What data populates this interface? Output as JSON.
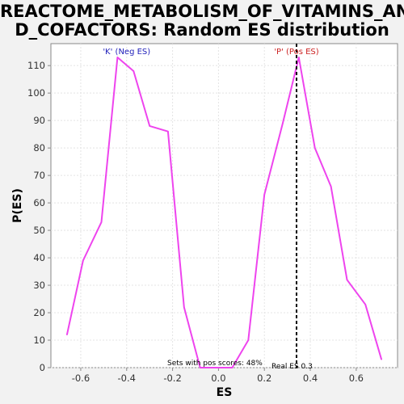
{
  "title_line1": "REACTOME_METABOLISM_OF_VITAMINS_AN",
  "title_line2": "D_COFACTORS: Random ES distribution",
  "chart_data": {
    "type": "line",
    "title": "REACTOME_METABOLISM_OF_VITAMINS_AND_COFACTORS: Random ES distribution",
    "xlabel": "ES",
    "ylabel": "P(ES)",
    "xlim": [
      -0.73,
      0.78
    ],
    "ylim": [
      0,
      118
    ],
    "xticks": [
      -0.6,
      -0.4,
      -0.2,
      0.0,
      0.2,
      0.4,
      0.6
    ],
    "xtick_labels": [
      "-0.6",
      "-0.4",
      "-0.2",
      "0.0",
      "0.2",
      "0.4",
      "0.6"
    ],
    "yticks": [
      0,
      10,
      20,
      30,
      40,
      50,
      60,
      70,
      80,
      90,
      100,
      110
    ],
    "ytick_labels": [
      "0",
      "10",
      "20",
      "30",
      "40",
      "50",
      "60",
      "70",
      "80",
      "90",
      "100",
      "110"
    ],
    "grid": true,
    "series": [
      {
        "color": "#ee44ee",
        "x": [
          -0.66,
          -0.59,
          -0.51,
          -0.44,
          -0.37,
          -0.3,
          -0.22,
          -0.15,
          -0.08,
          -0.01,
          0.06,
          0.13,
          0.2,
          0.28,
          0.35,
          0.42,
          0.49,
          0.56,
          0.64,
          0.71
        ],
        "y": [
          12,
          39,
          53,
          113,
          108,
          88,
          86,
          22,
          0,
          0,
          0,
          10,
          63,
          89,
          113,
          80,
          66,
          32,
          23,
          3
        ]
      }
    ],
    "real_es": {
      "x": 0.34,
      "label": "Real ES 0.3"
    },
    "annotations": {
      "neg_label": "'K' (Neg ES)",
      "neg_color": "#2222bb",
      "pos_label": "'P' (Pos ES)",
      "pos_color": "#cc2222",
      "footer": "Sets with pos scores: 48%"
    }
  }
}
